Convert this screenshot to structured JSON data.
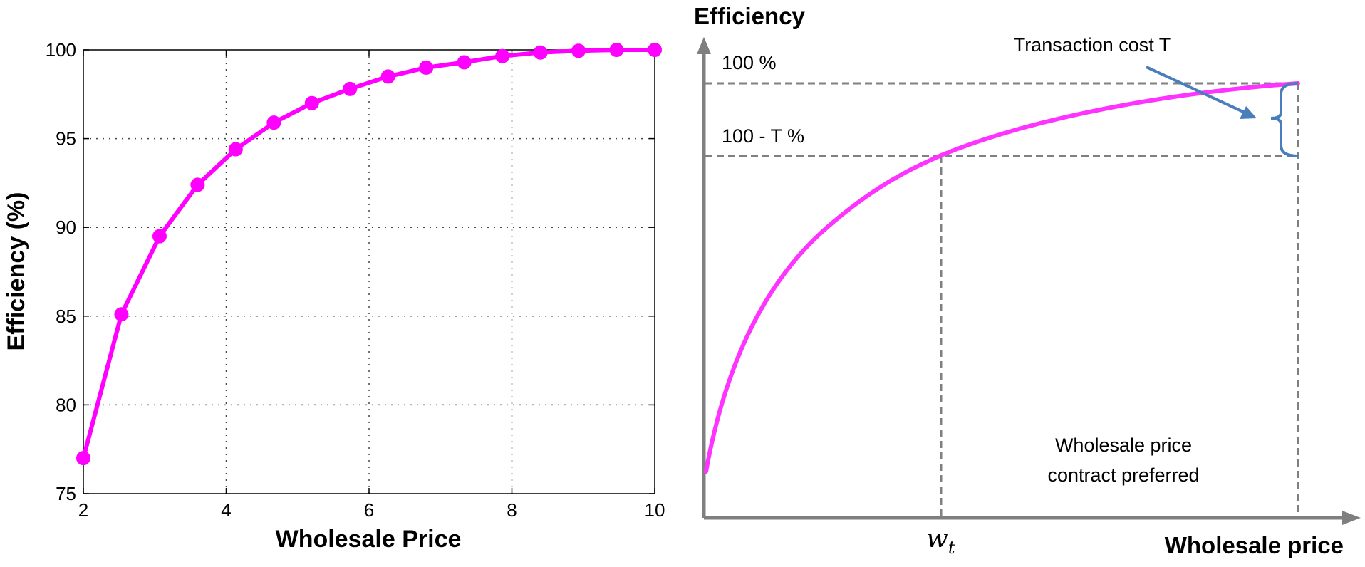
{
  "chart_data": [
    {
      "type": "line",
      "x": [
        2,
        2.533,
        3.067,
        3.6,
        4.133,
        4.667,
        5.2,
        5.733,
        6.267,
        6.8,
        7.333,
        7.867,
        8.4,
        8.933,
        9.467,
        10
      ],
      "series": [
        {
          "values": [
            77,
            85.1,
            89.5,
            92.4,
            94.4,
            95.9,
            97.0,
            97.8,
            98.5,
            99.0,
            99.3,
            99.65,
            99.85,
            99.95,
            100,
            100
          ]
        }
      ],
      "xlabel": "Wholesale Price",
      "ylabel": "Efficiency (%)",
      "xlim": [
        2,
        10
      ],
      "ylim": [
        75,
        100
      ],
      "xticks": [
        "2",
        "4",
        "6",
        "8",
        "10"
      ],
      "yticks": [
        "75",
        "80",
        "85",
        "90",
        "95",
        "100"
      ],
      "grid": true,
      "color": "#ff00ff"
    },
    {
      "type": "line",
      "ylabel": "Efficiency",
      "xlabel": "Wholesale price",
      "annotations": {
        "top_line": "100 %",
        "lower_line": "100 - T %",
        "cost": "Transaction cost T",
        "region_line1": "Wholesale price",
        "region_line2": "contract preferred",
        "threshold_main": "w",
        "threshold_sub": "t"
      },
      "curve_color": "#ff33ff",
      "guide_color": "#808080",
      "arrow_color": "#4a7ebb"
    }
  ]
}
